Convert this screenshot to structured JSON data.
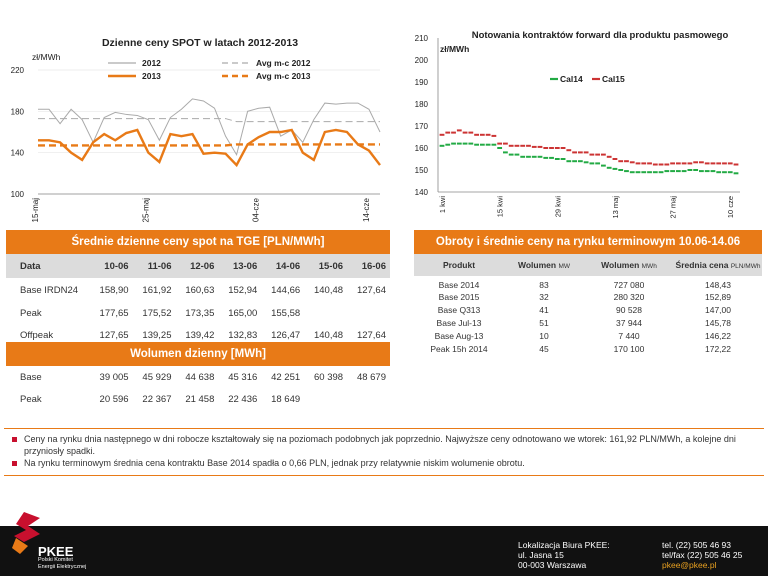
{
  "chart_data": [
    {
      "type": "line",
      "title": "Dzienne ceny SPOT w latach 2012-2013",
      "ylabel": "zł/MWh",
      "ylim": [
        100,
        220
      ],
      "yticks": [
        100,
        140,
        180,
        220
      ],
      "x_tick_labels": [
        "15-maj",
        "25-maj",
        "04-cze",
        "14-cze"
      ],
      "x_tick_index": [
        0,
        10,
        20,
        30
      ],
      "series": [
        {
          "name": "2012",
          "color": "#aaaaaa",
          "style": "solid",
          "values": [
            182,
            182,
            168,
            182,
            172,
            150,
            174,
            179,
            177,
            176,
            172,
            152,
            174,
            182,
            192,
            190,
            183,
            156,
            138,
            180,
            183,
            184,
            156,
            162,
            150,
            172,
            188,
            187,
            188,
            188,
            182,
            160
          ]
        },
        {
          "name": "2013",
          "color": "#e87a17",
          "style": "solid",
          "values": [
            152,
            152,
            150,
            140,
            133,
            150,
            158,
            152,
            159,
            162,
            140,
            131,
            158,
            156,
            158,
            139,
            140,
            139,
            128,
            148,
            155,
            160,
            160,
            162,
            140,
            133,
            160,
            162,
            160,
            148,
            142,
            128
          ]
        },
        {
          "name": "Avg m-c 2012",
          "color": "#aaaaaa",
          "style": "dashed",
          "values": [
            173,
            173,
            173,
            173,
            173,
            173,
            173,
            173,
            173,
            173,
            173,
            173,
            173,
            173,
            173,
            173,
            173,
            173,
            170,
            170,
            170,
            170,
            170,
            170,
            170,
            170,
            170,
            170,
            170,
            170,
            170,
            170
          ]
        },
        {
          "name": "Avg m-c 2013",
          "color": "#e87a17",
          "style": "dashed",
          "values": [
            147,
            147,
            147,
            147,
            147,
            147,
            147,
            147,
            147,
            147,
            147,
            147,
            147,
            147,
            147,
            147,
            147,
            147,
            148,
            148,
            148,
            148,
            148,
            148,
            148,
            148,
            148,
            148,
            148,
            148,
            148,
            148
          ]
        }
      ],
      "legend": "top-center"
    },
    {
      "type": "line",
      "title": "Notowania kontraktów forward dla produktu pasmowego",
      "ylabel": "zł/MWh",
      "ylim": [
        140,
        210
      ],
      "yticks": [
        140,
        150,
        160,
        170,
        180,
        190,
        200,
        210
      ],
      "x_tick_labels": [
        "1 kwi",
        "15 kwi",
        "29 kwi",
        "13 maj",
        "27 maj",
        "10 cze"
      ],
      "x_tick_index": [
        0,
        10,
        20,
        30,
        40,
        50
      ],
      "legend": "top-right",
      "series": [
        {
          "name": "Cal14",
          "color": "#22aa44",
          "values": [
            161,
            161.5,
            162,
            162,
            162,
            162,
            161.5,
            161.5,
            161.5,
            161.5,
            160,
            158,
            157,
            157,
            156,
            156,
            156,
            156,
            155.5,
            155.5,
            155,
            155,
            154,
            154,
            154,
            153.5,
            153,
            153,
            152,
            151,
            150.5,
            150,
            149.5,
            149,
            149,
            149,
            149,
            149,
            149,
            149.5,
            149.5,
            149.5,
            149.5,
            150,
            150,
            149.5,
            149.5,
            149.5,
            149,
            149,
            149,
            148.5
          ]
        },
        {
          "name": "Cal15",
          "color": "#cc3333",
          "values": [
            166,
            167,
            167,
            168,
            167,
            167,
            166,
            166,
            166,
            165.5,
            162,
            162,
            161,
            161,
            161,
            161,
            160.5,
            160.5,
            160,
            160,
            160,
            160,
            159,
            158,
            158,
            158,
            157,
            157,
            157,
            156,
            155,
            154,
            154,
            153.5,
            153,
            153,
            153,
            152.5,
            152.5,
            152.5,
            153,
            153,
            153,
            153,
            153.5,
            153.5,
            153,
            153,
            153,
            153,
            153,
            152.5
          ]
        }
      ]
    }
  ],
  "spot_table": {
    "title": "Średnie dzienne ceny spot na TGE [PLN/MWh]",
    "header": [
      "Data",
      "10-06",
      "11-06",
      "12-06",
      "13-06",
      "14-06",
      "15-06",
      "16-06"
    ],
    "rows": [
      [
        "Base IRDN24",
        "158,90",
        "161,92",
        "160,63",
        "152,94",
        "144,66",
        "140,48",
        "127,64"
      ],
      [
        "Peak",
        "177,65",
        "175,52",
        "173,35",
        "165,00",
        "155,58",
        "",
        ""
      ],
      [
        "Offpeak",
        "127,65",
        "139,25",
        "139,42",
        "132,83",
        "126,47",
        "140,48",
        "127,64"
      ]
    ]
  },
  "volume_table": {
    "title": "Wolumen dzienny [MWh]",
    "rows": [
      [
        "Base",
        "39 005",
        "45 929",
        "44 638",
        "45 316",
        "42 251",
        "60 398",
        "48 679"
      ],
      [
        "Peak",
        "20 596",
        "22 367",
        "21 458",
        "22 436",
        "18 649",
        "",
        ""
      ]
    ]
  },
  "forward_table": {
    "title": "Obroty i średnie ceny na rynku terminowym 10.06-14.06",
    "header": [
      {
        "main": "Produkt",
        "unit": ""
      },
      {
        "main": "Wolumen",
        "unit": "MW"
      },
      {
        "main": "Wolumen",
        "unit": "MWh"
      },
      {
        "main": "Średnia cena",
        "unit": "PLN/MWh"
      }
    ],
    "rows": [
      [
        "Base 2014",
        "83",
        "727 080",
        "148,43"
      ],
      [
        "Base 2015",
        "32",
        "280 320",
        "152,89"
      ],
      [
        "Base Q313",
        "41",
        "90 528",
        "147,00"
      ],
      [
        "Base Jul-13",
        "51",
        "37 944",
        "145,78"
      ],
      [
        "Base Aug-13",
        "10",
        "7 440",
        "146,22"
      ],
      [
        "Peak 15h 2014",
        "45",
        "170 100",
        "172,22"
      ]
    ]
  },
  "notes": [
    "Ceny na rynku dnia następnego w dni robocze kształtowały się na poziomach podobnych jak poprzednio. Najwyższe ceny odnotowano we wtorek: 161,92 PLN/MWh, a kolejne dni przyniosły spadki.",
    "Na rynku terminowym średnia cena kontraktu Base 2014 spadła o 0,66 PLN, jednak przy relatywnie niskim wolumenie obrotu."
  ],
  "footer": {
    "logo_name": "PKEE",
    "logo_sub1": "Polski Komitet",
    "logo_sub2": "Energii Elektrycznej",
    "addr1": "Lokalizacja Biura PKEE:",
    "addr2": "ul. Jasna 15",
    "addr3": "00-003 Warszawa",
    "tel": "tel. (22) 505 46 93",
    "fax": "tel/fax (22) 505 46 25",
    "email": "pkee@pkee.pl",
    "colors": {
      "accent": "#e87a17",
      "brand_red": "#c8102e",
      "footer_bg": "#111111"
    }
  }
}
